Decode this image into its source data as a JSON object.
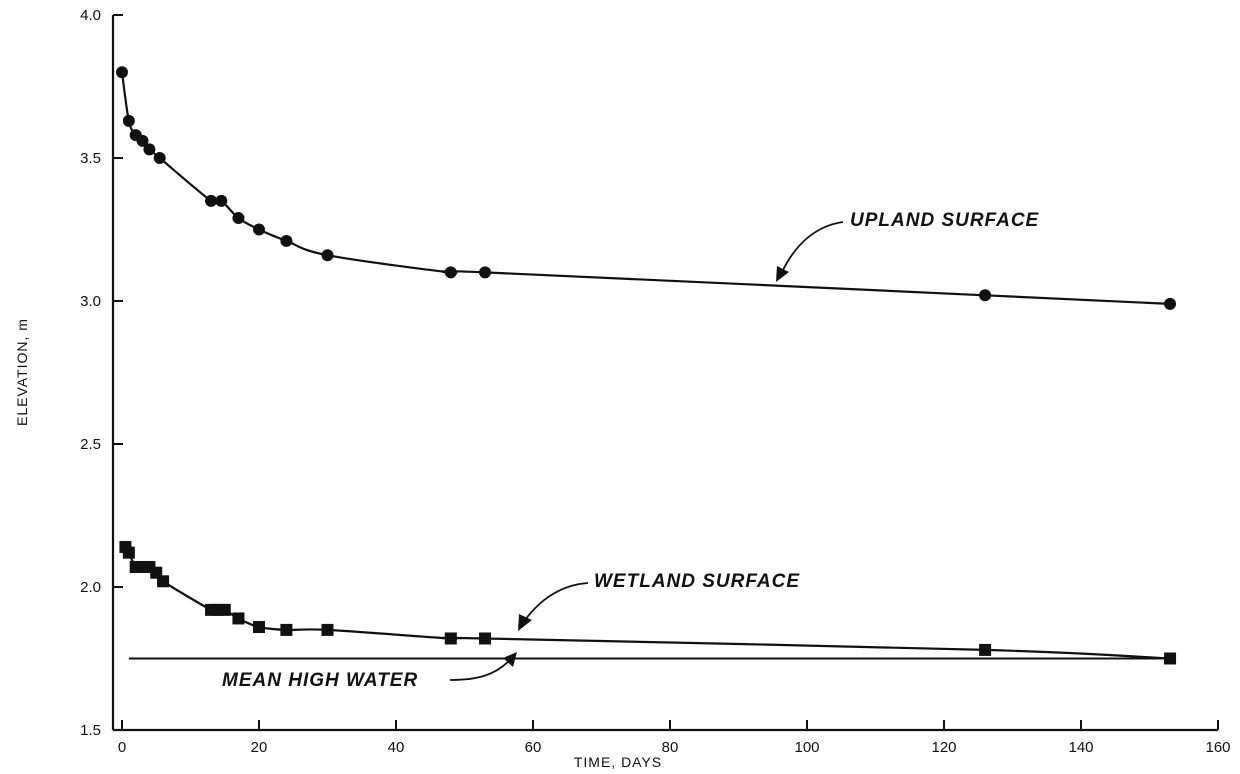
{
  "chart_data": {
    "type": "line",
    "title": "",
    "xlabel": "TIME, DAYS",
    "ylabel": "ELEVATION, m",
    "xlim": [
      0,
      160
    ],
    "ylim": [
      1.5,
      4.0
    ],
    "x_ticks": [
      0,
      20,
      40,
      60,
      80,
      100,
      120,
      140,
      160
    ],
    "y_ticks": [
      1.5,
      2.0,
      2.5,
      3.0,
      3.5,
      4.0
    ],
    "x_tick_labels": [
      "0",
      "20",
      "40",
      "60",
      "80",
      "100",
      "120",
      "140",
      "160"
    ],
    "y_tick_labels": [
      "1.5",
      "2.0",
      "2.5",
      "3.0",
      "3.5",
      "4.0"
    ],
    "grid": false,
    "legend": "none",
    "series": [
      {
        "name": "UPLAND SURFACE",
        "marker": "circle",
        "points": [
          [
            0,
            3.8
          ],
          [
            1,
            3.63
          ],
          [
            2,
            3.58
          ],
          [
            3,
            3.56
          ],
          [
            4,
            3.53
          ],
          [
            5.5,
            3.5
          ],
          [
            13,
            3.35
          ],
          [
            14.5,
            3.35
          ],
          [
            17,
            3.29
          ],
          [
            20,
            3.25
          ],
          [
            24,
            3.21
          ],
          [
            30,
            3.16
          ],
          [
            48,
            3.1
          ],
          [
            53,
            3.1
          ],
          [
            126,
            3.02
          ],
          [
            153,
            2.99
          ]
        ]
      },
      {
        "name": "WETLAND SURFACE",
        "marker": "square",
        "points": [
          [
            0.5,
            2.14
          ],
          [
            1,
            2.12
          ],
          [
            2,
            2.07
          ],
          [
            3,
            2.07
          ],
          [
            4,
            2.07
          ],
          [
            5,
            2.05
          ],
          [
            6,
            2.02
          ],
          [
            13,
            1.92
          ],
          [
            14,
            1.92
          ],
          [
            15,
            1.92
          ],
          [
            17,
            1.89
          ],
          [
            20,
            1.86
          ],
          [
            24,
            1.85
          ],
          [
            30,
            1.85
          ],
          [
            48,
            1.82
          ],
          [
            53,
            1.82
          ],
          [
            126,
            1.78
          ],
          [
            153,
            1.75
          ]
        ]
      },
      {
        "name": "MEAN HIGH WATER",
        "marker": "none",
        "points": [
          [
            1,
            1.75
          ],
          [
            153,
            1.75
          ]
        ]
      }
    ],
    "annotations": [
      {
        "text": "UPLAND SURFACE",
        "target": [
          97,
          3.07
        ]
      },
      {
        "text": "WETLAND SURFACE",
        "target": [
          60,
          1.82
        ]
      },
      {
        "text": "MEAN HIGH WATER",
        "target": [
          58,
          1.75
        ]
      }
    ]
  }
}
